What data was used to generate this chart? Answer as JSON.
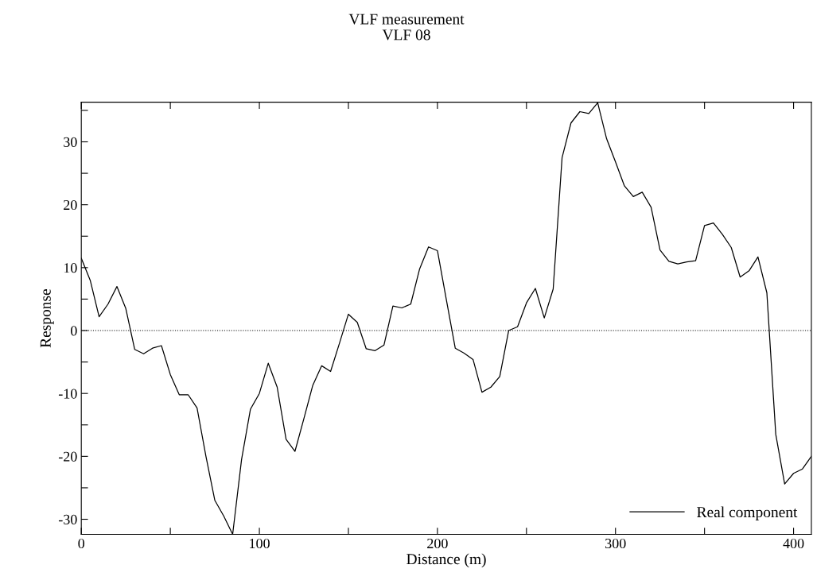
{
  "chart_data": {
    "type": "line",
    "title": "VLF measurement",
    "subtitle": "VLF 08",
    "xlabel": "Distance (m)",
    "ylabel": "Response",
    "x": [
      0,
      5,
      10,
      15,
      20,
      25,
      30,
      35,
      40,
      45,
      50,
      55,
      60,
      65,
      70,
      75,
      80,
      85,
      90,
      95,
      100,
      105,
      110,
      115,
      120,
      125,
      130,
      135,
      140,
      145,
      150,
      155,
      160,
      165,
      170,
      175,
      180,
      185,
      190,
      195,
      200,
      205,
      210,
      215,
      220,
      225,
      230,
      235,
      240,
      245,
      250,
      255,
      260,
      265,
      270,
      275,
      280,
      285,
      290,
      295,
      300,
      305,
      310,
      315,
      320,
      325,
      330,
      335,
      340,
      345,
      350,
      355,
      360,
      365,
      370,
      375,
      380,
      385,
      390,
      395,
      400,
      405,
      410
    ],
    "series": [
      {
        "name": "Real component",
        "color": "#000000",
        "values": [
          11.5,
          8,
          2.2,
          4.2,
          7,
          3.5,
          -3,
          -3.7,
          -2.8,
          -2.4,
          -7,
          -10.2,
          -10.2,
          -12.3,
          -20,
          -27,
          -29.5,
          -32.4,
          -20.5,
          -12.5,
          -10,
          -5.2,
          -9,
          -17.3,
          -19.2,
          -14,
          -8.7,
          -5.6,
          -6.5,
          -2,
          2.6,
          1.3,
          -2.9,
          -3.2,
          -2.3,
          3.9,
          3.6,
          4.2,
          9.8,
          13.3,
          12.7,
          4.9,
          -2.8,
          -3.6,
          -4.6,
          -9.8,
          -9,
          -7.3,
          0,
          0.6,
          4.4,
          6.7,
          2,
          6.6,
          27.5,
          33,
          34.8,
          34.5,
          36.2,
          30.5,
          26.8,
          23,
          21.3,
          22,
          19.6,
          12.8,
          11,
          10.6,
          10.9,
          11.1,
          16.7,
          17.1,
          15.3,
          13.2,
          8.5,
          9.5,
          11.7,
          6,
          -16.5,
          -24.4,
          -22.7,
          -22,
          -20
        ]
      }
    ],
    "xlim": [
      0,
      410
    ],
    "ylim": [
      -32.4,
      36.3
    ],
    "xticks": [
      0,
      {
        "value": 50,
        "label": null
      },
      100,
      {
        "value": 150,
        "label": null
      },
      200,
      {
        "value": 250,
        "label": null
      },
      300,
      {
        "value": 350,
        "label": null
      },
      400
    ],
    "yticks": [
      -30,
      {
        "value": -25,
        "label": null
      },
      -20,
      {
        "value": -15,
        "label": null
      },
      -10,
      {
        "value": -5,
        "label": null
      },
      0,
      {
        "value": 5,
        "label": null
      },
      10,
      {
        "value": 15,
        "label": null
      },
      20,
      {
        "value": 25,
        "label": null
      },
      30,
      {
        "value": 35,
        "label": null
      }
    ],
    "ref_lines": [
      {
        "axis": "y",
        "value": 0,
        "label": null,
        "color": "#000000",
        "line_style": "dotted"
      }
    ],
    "legend": "bottom right",
    "grid": false,
    "marker": "none",
    "line_style": "solid"
  }
}
